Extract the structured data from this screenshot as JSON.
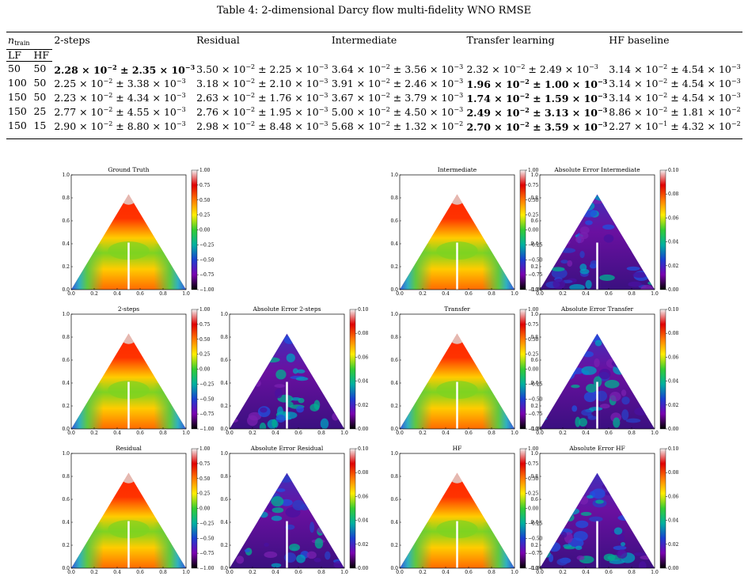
{
  "caption": "Table 4: 2-dimensional Darcy flow multi-fidelity WNO RMSE",
  "table": {
    "ntrain": "n",
    "ntrain_sub": "train",
    "sub_headers": [
      "LF",
      "HF"
    ],
    "headers": [
      "2-steps",
      "Residual",
      "Intermediate",
      "Transfer learning",
      "HF baseline"
    ],
    "rows": [
      {
        "lf": "50",
        "hf": "50",
        "cells": [
          {
            "a": "2.28",
            "ae": "−2",
            "b": "2.35",
            "be": "−3",
            "bold": true
          },
          {
            "a": "3.50",
            "ae": "−2",
            "b": "2.25",
            "be": "−3",
            "bold": false
          },
          {
            "a": "3.64",
            "ae": "−2",
            "b": "3.56",
            "be": "−3",
            "bold": false
          },
          {
            "a": "2.32",
            "ae": "−2",
            "b": "2.49",
            "be": "−3",
            "bold": false
          },
          {
            "a": "3.14",
            "ae": "−2",
            "b": "4.54",
            "be": "−3",
            "bold": false
          }
        ]
      },
      {
        "lf": "100",
        "hf": "50",
        "cells": [
          {
            "a": "2.25",
            "ae": "−2",
            "b": "3.38",
            "be": "−3",
            "bold": false
          },
          {
            "a": "3.18",
            "ae": "−2",
            "b": "2.10",
            "be": "−3",
            "bold": false
          },
          {
            "a": "3.91",
            "ae": "−2",
            "b": "2.46",
            "be": "−3",
            "bold": false
          },
          {
            "a": "1.96",
            "ae": "−2",
            "b": "1.00",
            "be": "−3",
            "bold": true
          },
          {
            "a": "3.14",
            "ae": "−2",
            "b": "4.54",
            "be": "−3",
            "bold": false
          }
        ]
      },
      {
        "lf": "150",
        "hf": "50",
        "cells": [
          {
            "a": "2.23",
            "ae": "−2",
            "b": "4.34",
            "be": "−3",
            "bold": false
          },
          {
            "a": "2.63",
            "ae": "−2",
            "b": "1.76",
            "be": "−3",
            "bold": false
          },
          {
            "a": "3.67",
            "ae": "−2",
            "b": "3.79",
            "be": "−3",
            "bold": false
          },
          {
            "a": "1.74",
            "ae": "−2",
            "b": "1.59",
            "be": "−3",
            "bold": true
          },
          {
            "a": "3.14",
            "ae": "−2",
            "b": "4.54",
            "be": "−3",
            "bold": false
          }
        ]
      },
      {
        "lf": "150",
        "hf": "25",
        "cells": [
          {
            "a": "2.77",
            "ae": "−2",
            "b": "4.55",
            "be": "−3",
            "bold": false
          },
          {
            "a": "2.76",
            "ae": "−2",
            "b": "1.95",
            "be": "−3",
            "bold": false
          },
          {
            "a": "5.00",
            "ae": "−2",
            "b": "4.50",
            "be": "−3",
            "bold": false
          },
          {
            "a": "2.49",
            "ae": "−2",
            "b": "3.13",
            "be": "−3",
            "bold": true
          },
          {
            "a": "8.86",
            "ae": "−2",
            "b": "1.81",
            "be": "−2",
            "bold": false
          }
        ]
      },
      {
        "lf": "150",
        "hf": "15",
        "cells": [
          {
            "a": "2.90",
            "ae": "−2",
            "b": "8.80",
            "be": "−3",
            "bold": false
          },
          {
            "a": "2.98",
            "ae": "−2",
            "b": "8.48",
            "be": "−3",
            "bold": false
          },
          {
            "a": "5.68",
            "ae": "−2",
            "b": "1.32",
            "be": "−2",
            "bold": false
          },
          {
            "a": "2.70",
            "ae": "−2",
            "b": "3.59",
            "be": "−3",
            "bold": true
          },
          {
            "a": "2.27",
            "ae": "−1",
            "b": "4.32",
            "be": "−2",
            "bold": false
          }
        ]
      }
    ]
  },
  "chart_data": {
    "type": "heatmap",
    "panels": [
      {
        "title": "Ground Truth",
        "kind": "solution",
        "colorbar": [
          "1.00",
          "0.75",
          "0.50",
          "0.25",
          "0.00",
          "−0.25",
          "−0.50",
          "−0.75",
          "−1.00"
        ]
      },
      {
        "title": "Intermediate",
        "kind": "solution",
        "colorbar": [
          "1.00",
          "0.75",
          "0.50",
          "0.25",
          "0.00",
          "−0.25",
          "−0.50",
          "−0.75",
          "−1.00"
        ]
      },
      {
        "title": "Absolute Error Intermediate",
        "kind": "error",
        "colorbar": [
          "0.10",
          "0.08",
          "0.06",
          "0.04",
          "0.02",
          "0.00"
        ]
      },
      {
        "title": "2-steps",
        "kind": "solution",
        "colorbar": [
          "1.00",
          "0.75",
          "0.50",
          "0.25",
          "0.00",
          "−0.25",
          "−0.50",
          "−0.75",
          "−1.00"
        ]
      },
      {
        "title": "Absolute Error 2-steps",
        "kind": "error",
        "colorbar": [
          "0.10",
          "0.08",
          "0.06",
          "0.04",
          "0.02",
          "0.00"
        ]
      },
      {
        "title": "Transfer",
        "kind": "solution",
        "colorbar": [
          "1.00",
          "0.75",
          "0.50",
          "0.25",
          "0.00",
          "−0.25",
          "−0.50",
          "−0.75",
          "−1.00"
        ]
      },
      {
        "title": "Absolute Error Transfer",
        "kind": "error",
        "colorbar": [
          "0.10",
          "0.08",
          "0.06",
          "0.04",
          "0.02",
          "0.00"
        ]
      },
      {
        "title": "Residual",
        "kind": "solution",
        "colorbar": [
          "1.00",
          "0.75",
          "0.50",
          "0.25",
          "0.00",
          "−0.25",
          "−0.50",
          "−0.75",
          "−1.00"
        ]
      },
      {
        "title": "Absolute Error Residual",
        "kind": "error",
        "colorbar": [
          "0.10",
          "0.08",
          "0.06",
          "0.04",
          "0.02",
          "0.00"
        ]
      },
      {
        "title": "HF",
        "kind": "solution",
        "colorbar": [
          "1.00",
          "0.75",
          "0.50",
          "0.25",
          "0.00",
          "−0.25",
          "−0.50",
          "−0.75",
          "−1.00"
        ]
      },
      {
        "title": "Absolute Error HF",
        "kind": "error",
        "colorbar": [
          "0.10",
          "0.08",
          "0.06",
          "0.04",
          "0.02",
          "0.00"
        ]
      }
    ],
    "xticks": [
      "0.0",
      "0.2",
      "0.4",
      "0.6",
      "0.8",
      "1.0"
    ],
    "yticks": [
      "0.0",
      "0.2",
      "0.4",
      "0.6",
      "0.8",
      "1.0"
    ],
    "solution_colormap": [
      "#f2f2f2",
      "#e00000",
      "#ff7a00",
      "#ffee00",
      "#33cc33",
      "#00b0a0",
      "#1a40d0",
      "#7a00b0",
      "#000000"
    ],
    "error_colormap": [
      "#f2f2f2",
      "#e00000",
      "#ff7a00",
      "#ffee00",
      "#33cc33",
      "#00b0a0",
      "#1a40d0",
      "#7a00b0",
      "#000000"
    ]
  }
}
